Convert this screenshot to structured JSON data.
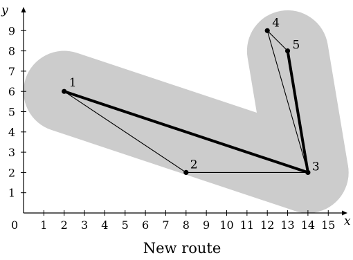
{
  "axes": {
    "x_label": "x",
    "y_label": "y",
    "origin_label": "0",
    "x_ticks": [
      "1",
      "2",
      "3",
      "4",
      "5",
      "6",
      "7",
      "8",
      "9",
      "10",
      "11",
      "12",
      "13",
      "14",
      "15"
    ],
    "y_ticks": [
      "1",
      "2",
      "3",
      "4",
      "5",
      "6",
      "7",
      "8",
      "9"
    ],
    "x_range": [
      0,
      16
    ],
    "y_range": [
      0,
      10
    ]
  },
  "nodes": [
    {
      "label": "1",
      "x": 2,
      "y": 6
    },
    {
      "label": "2",
      "x": 8,
      "y": 2
    },
    {
      "label": "3",
      "x": 14,
      "y": 2
    },
    {
      "label": "4",
      "x": 12,
      "y": 9
    },
    {
      "label": "5",
      "x": 13,
      "y": 8
    }
  ],
  "thin_edges": [
    [
      "1",
      "2"
    ],
    [
      "2",
      "3"
    ],
    [
      "3",
      "4"
    ],
    [
      "4",
      "5"
    ],
    [
      "5",
      "3"
    ]
  ],
  "route_edges": [
    [
      "1",
      "3"
    ],
    [
      "3",
      "5"
    ]
  ],
  "corridor_radius": 2,
  "colors": {
    "corridor": "#cccccc",
    "route": "#000000",
    "edge": "#000000"
  },
  "caption": "New route"
}
